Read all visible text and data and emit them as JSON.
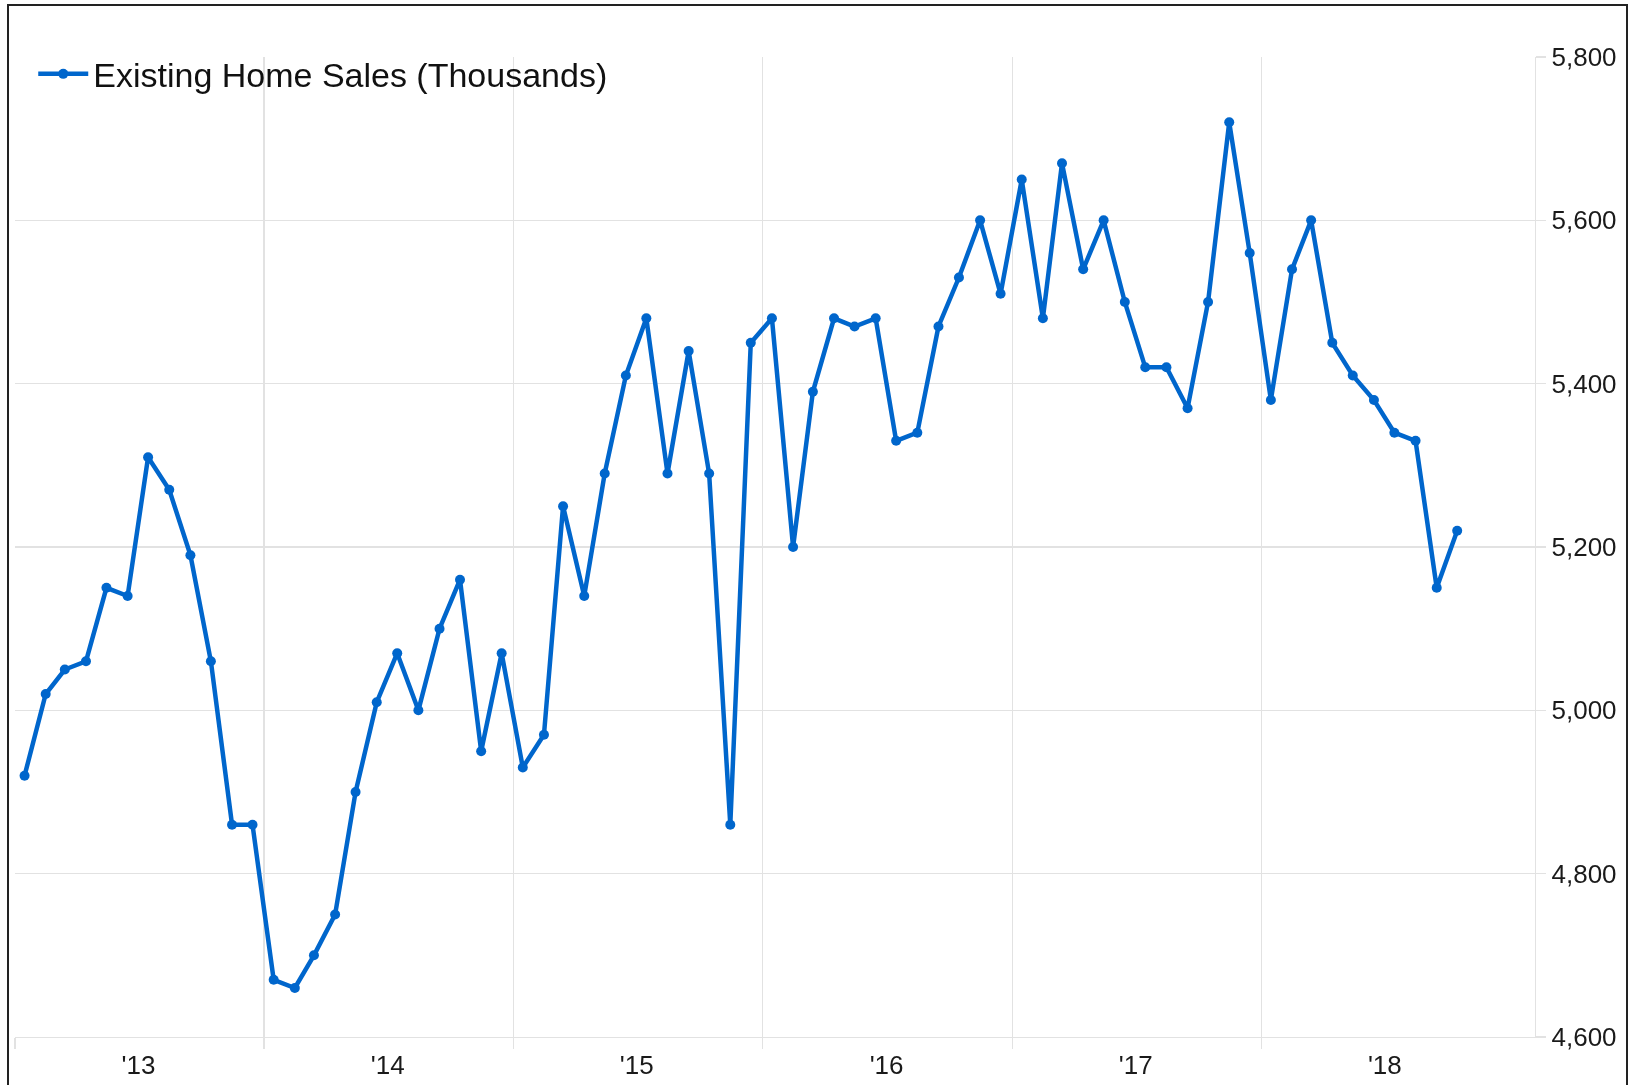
{
  "chart_data": {
    "type": "line",
    "x": [
      "2013-01-15",
      "2013-02-15",
      "2013-03-15",
      "2013-04-15",
      "2013-05-15",
      "2013-06-15",
      "2013-07-15",
      "2013-08-15",
      "2013-09-15",
      "2013-10-15",
      "2013-11-15",
      "2013-12-15",
      "2014-01-15",
      "2014-02-15",
      "2014-03-15",
      "2014-04-15",
      "2014-05-15",
      "2014-06-15",
      "2014-07-15",
      "2014-08-15",
      "2014-09-15",
      "2014-10-15",
      "2014-11-15",
      "2014-12-15",
      "2015-01-15",
      "2015-02-15",
      "2015-03-15",
      "2015-04-15",
      "2015-05-15",
      "2015-06-15",
      "2015-07-15",
      "2015-08-15",
      "2015-09-15",
      "2015-10-15",
      "2015-11-15",
      "2015-12-15",
      "2016-01-15",
      "2016-02-15",
      "2016-03-15",
      "2016-04-15",
      "2016-05-15",
      "2016-06-15",
      "2016-07-15",
      "2016-08-15",
      "2016-09-15",
      "2016-10-15",
      "2016-11-15",
      "2016-12-15",
      "2017-01-15",
      "2017-02-15",
      "2017-03-15",
      "2017-04-15",
      "2017-05-15",
      "2017-06-15",
      "2017-07-15",
      "2017-08-15",
      "2017-09-15",
      "2017-10-15",
      "2017-11-15",
      "2017-12-15",
      "2018-01-15",
      "2018-02-15",
      "2018-03-15",
      "2018-04-15",
      "2018-05-15",
      "2018-06-15",
      "2018-07-15",
      "2018-08-15",
      "2018-09-15",
      "2018-10-15"
    ],
    "series": [
      {
        "name": "Existing Home Sales (Thousands)",
        "color": "#0066cc",
        "values": [
          4920,
          5020,
          5050,
          5060,
          5150,
          5140,
          5310,
          5270,
          5190,
          5060,
          4860,
          4860,
          4670,
          4660,
          4700,
          4750,
          4900,
          5010,
          5070,
          5000,
          5100,
          5160,
          4950,
          5070,
          4930,
          4970,
          5250,
          5140,
          5290,
          5410,
          5480,
          5290,
          5440,
          5290,
          4860,
          5450,
          5480,
          5200,
          5390,
          5480,
          5470,
          5480,
          5330,
          5340,
          5470,
          5530,
          5600,
          5510,
          5650,
          5480,
          5670,
          5540,
          5600,
          5500,
          5420,
          5420,
          5370,
          5500,
          5720,
          5560,
          5380,
          5540,
          5600,
          5450,
          5410,
          5380,
          5340,
          5330,
          5150,
          5220
        ]
      }
    ],
    "xlim": [
      "2013-01-01",
      "2019-02-06"
    ],
    "xticks": [
      {
        "value": "2013-01-01",
        "label": null
      },
      {
        "value": "2013-07-01",
        "label": "'13"
      },
      {
        "value": "2014-01-01",
        "label": null
      },
      {
        "value": "2014-07-01",
        "label": "'14"
      },
      {
        "value": "2015-01-01",
        "label": null
      },
      {
        "value": "2015-07-01",
        "label": "'15"
      },
      {
        "value": "2016-01-01",
        "label": null
      },
      {
        "value": "2016-07-01",
        "label": "'16"
      },
      {
        "value": "2017-01-01",
        "label": null
      },
      {
        "value": "2017-07-01",
        "label": "'17"
      },
      {
        "value": "2018-01-01",
        "label": null
      },
      {
        "value": "2018-07-01",
        "label": "'18"
      }
    ],
    "ylim": [
      4600,
      5800
    ],
    "yticks": [
      {
        "value": 4600,
        "label": "4,600"
      },
      {
        "value": 4800,
        "label": "4,800"
      },
      {
        "value": 5000,
        "label": "5,000"
      },
      {
        "value": 5200,
        "label": "5,200"
      },
      {
        "value": 5400,
        "label": "5,400"
      },
      {
        "value": 5600,
        "label": "5,600"
      },
      {
        "value": 5800,
        "label": "5,800"
      }
    ],
    "grid": true,
    "legend": "top left",
    "marker": "circle",
    "line_style": "solid"
  }
}
